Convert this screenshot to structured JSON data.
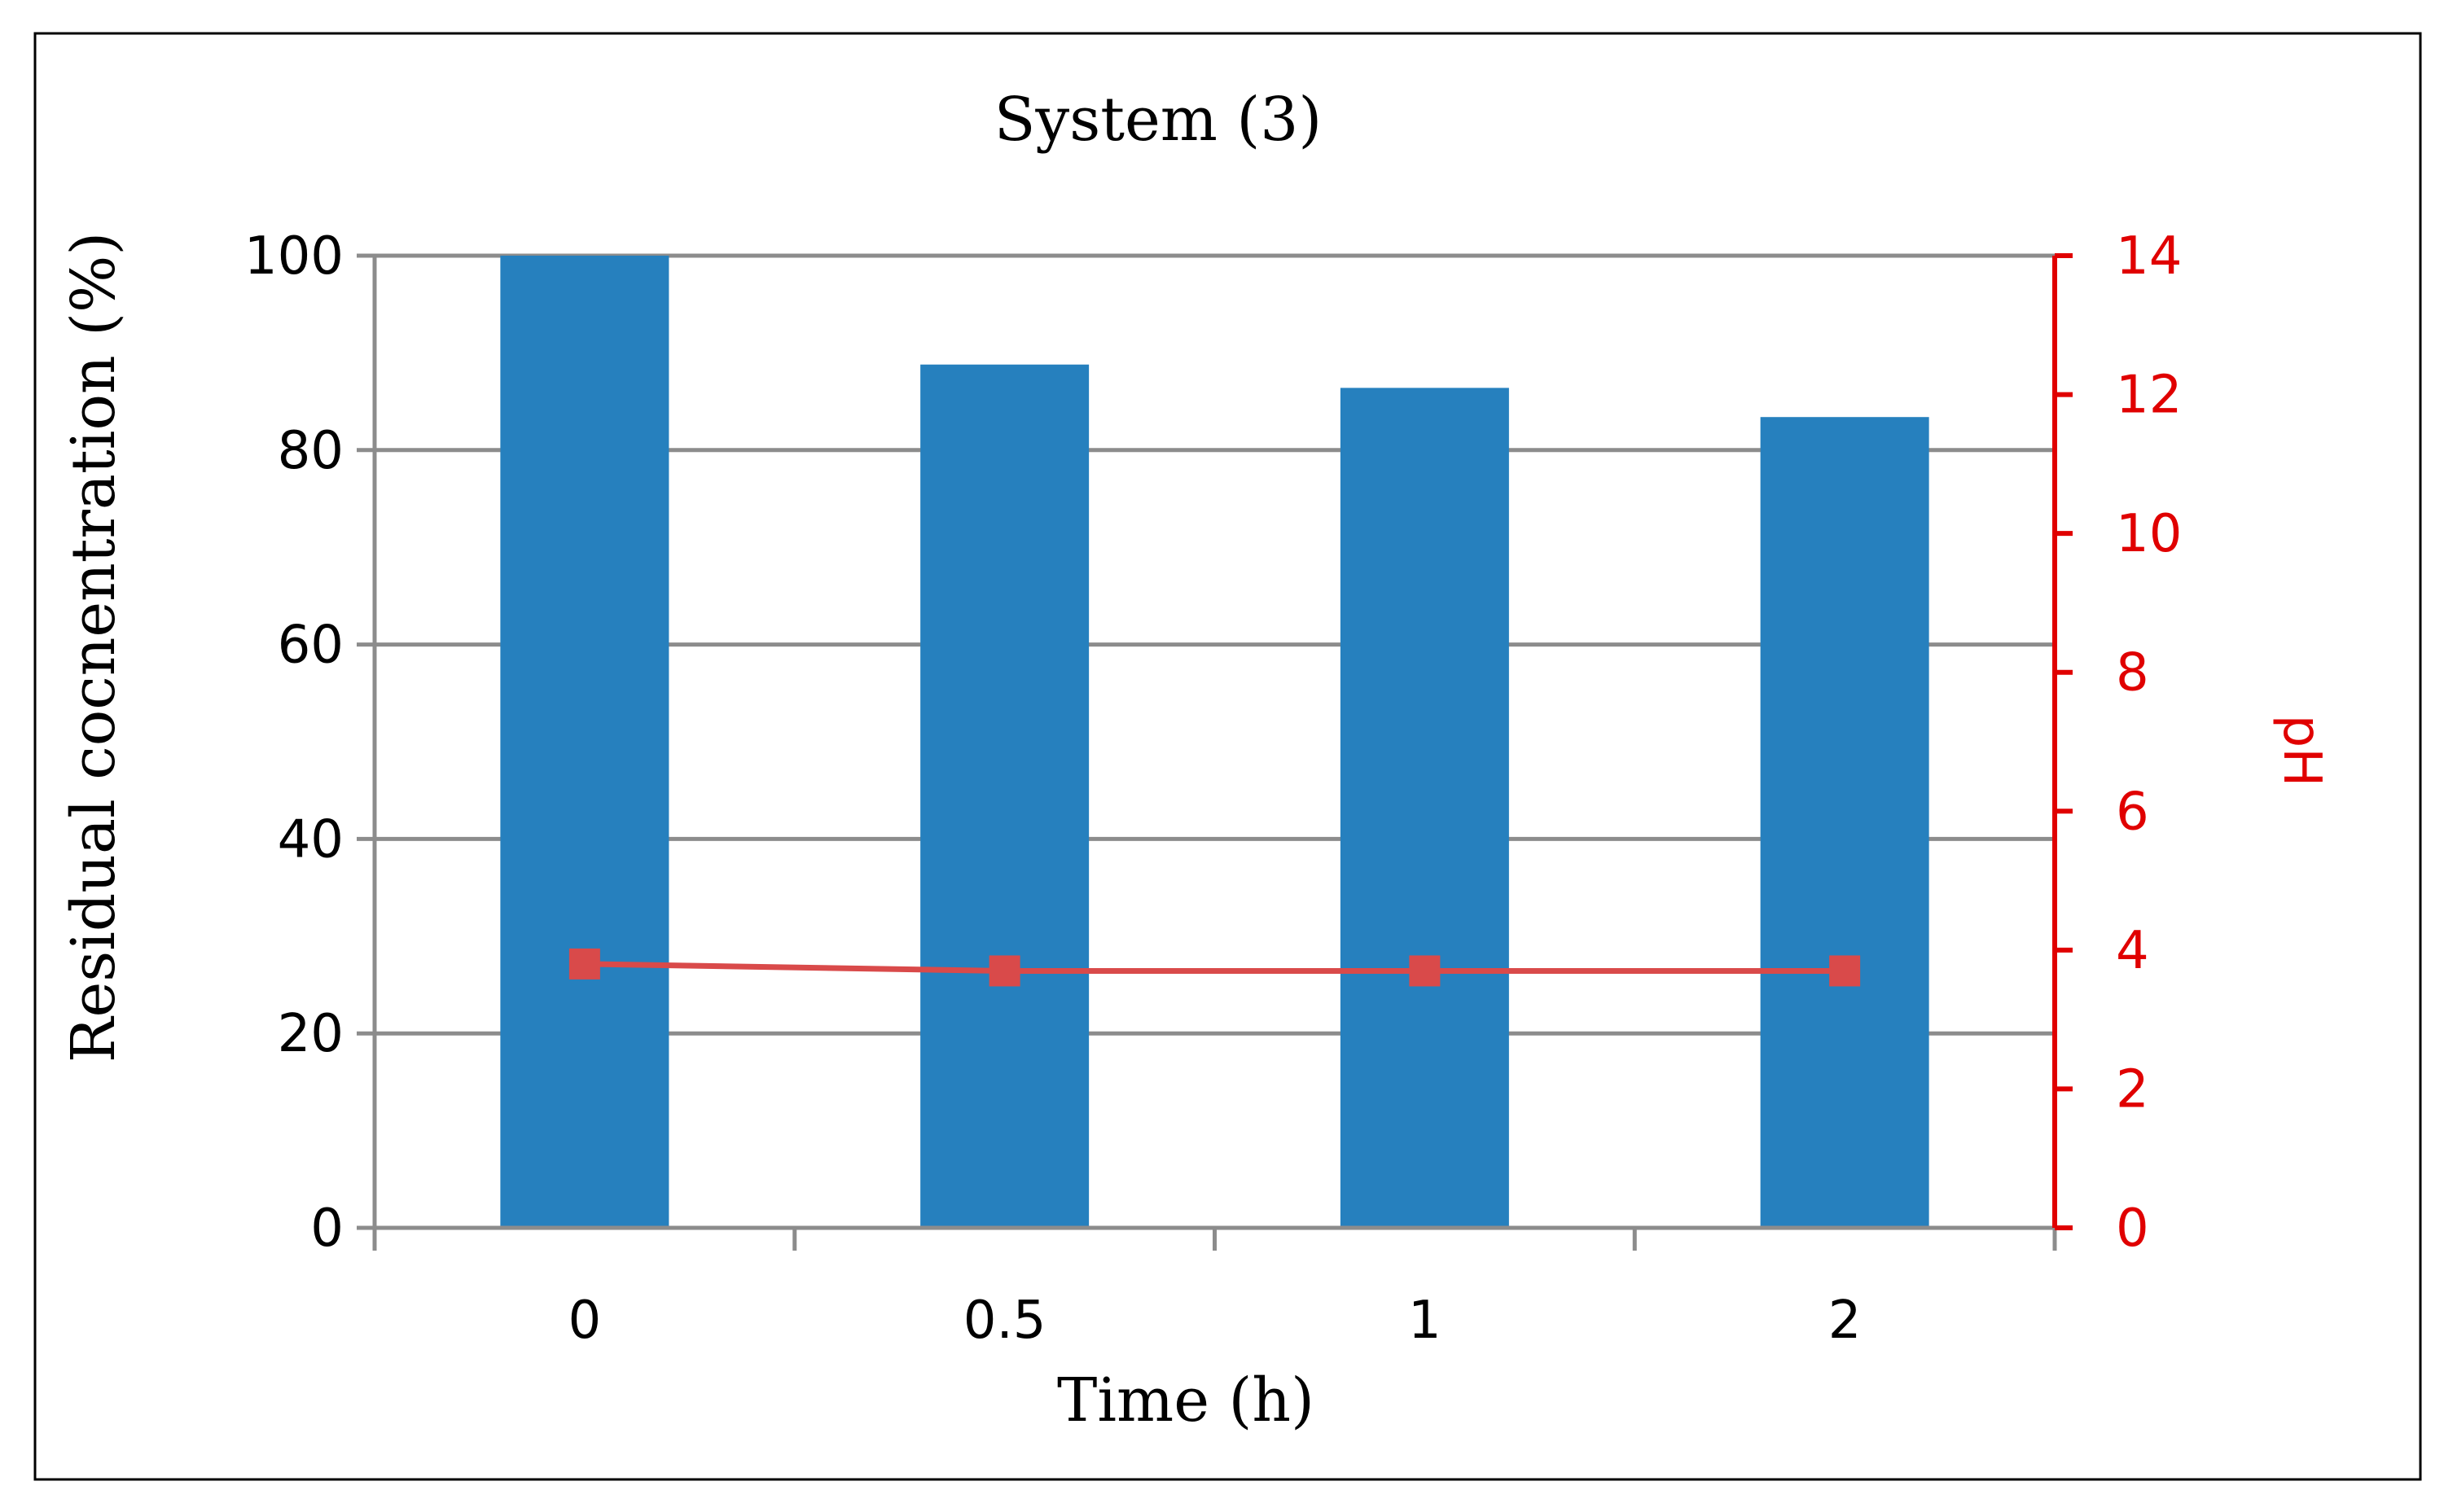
{
  "chart_data": {
    "type": "bar",
    "title": "System (3)",
    "xlabel": "Time (h)",
    "ylabel": "Residual cocnentration (%)",
    "y2label": "pH",
    "categories": [
      "0",
      "0.5",
      "1",
      "2"
    ],
    "ylim": [
      0,
      100
    ],
    "yticks": [
      0,
      20,
      40,
      60,
      80,
      100
    ],
    "y2lim": [
      0,
      14
    ],
    "y2ticks": [
      0,
      2,
      4,
      6,
      8,
      10,
      12,
      14
    ],
    "grid": true,
    "series": [
      {
        "type": "bar",
        "axis": "left",
        "values": [
          100,
          88.8,
          86.4,
          83.4
        ]
      },
      {
        "type": "line",
        "axis": "right",
        "values": [
          3.8,
          3.7,
          3.7,
          3.7
        ]
      }
    ]
  },
  "colors": {
    "bar": "#2680be",
    "line": "#d94a4a",
    "right_axis": "#e00000",
    "grid": "#8c8c8c",
    "frame": "#000000"
  }
}
